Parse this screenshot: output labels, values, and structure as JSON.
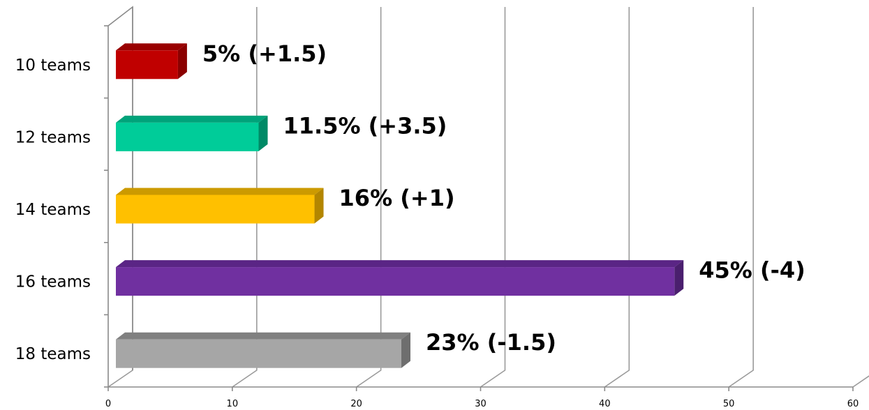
{
  "chart_data": {
    "type": "bar",
    "orientation": "horizontal",
    "categories": [
      "10 teams",
      "12 teams",
      "14 teams",
      "16 teams",
      "18 teams"
    ],
    "values": [
      5,
      11.5,
      16,
      45,
      23
    ],
    "data_labels": [
      "5% (+1.5)",
      "11.5% (+3.5)",
      "16% (+1)",
      "45% (-4)",
      "23% (-1.5)"
    ],
    "colors": [
      "#c00000",
      "#00cc99",
      "#ffc000",
      "#7030a0",
      "#a6a6a6"
    ],
    "side_colors": [
      "#8b0000",
      "#008a66",
      "#b38600",
      "#4a1f6e",
      "#6e6e6e"
    ],
    "top_colors": [
      "#990000",
      "#00a37a",
      "#cc9a00",
      "#5a2585",
      "#808080"
    ],
    "xticks": [
      "0",
      "10",
      "20",
      "30",
      "40",
      "50",
      "60"
    ],
    "xlim": [
      0,
      60
    ],
    "grid": true,
    "legend": "none",
    "title": "",
    "xlabel": "",
    "ylabel": ""
  }
}
